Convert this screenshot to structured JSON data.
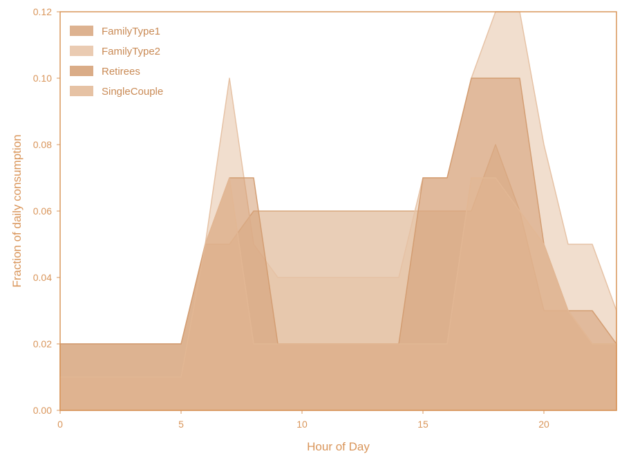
{
  "chart_data": {
    "type": "area",
    "title": "",
    "xlabel": "Hour of Day",
    "ylabel": "Fraction of daily consumption",
    "xlim": [
      0,
      23
    ],
    "ylim": [
      0,
      0.12
    ],
    "x": [
      0,
      1,
      2,
      3,
      4,
      5,
      6,
      7,
      8,
      9,
      10,
      11,
      12,
      13,
      14,
      15,
      16,
      17,
      18,
      19,
      20,
      21,
      22,
      23
    ],
    "xticks": [
      0,
      5,
      10,
      15,
      20
    ],
    "xtick_labels": [
      "0",
      "5",
      "10",
      "15",
      "20"
    ],
    "yticks": [
      0.0,
      0.02,
      0.04,
      0.06,
      0.08,
      0.1,
      0.12
    ],
    "ytick_labels": [
      "0.00",
      "0.02",
      "0.04",
      "0.06",
      "0.08",
      "0.10",
      "0.12"
    ],
    "grid": false,
    "legend_position": "top-left",
    "series": [
      {
        "name": "FamilyType1",
        "color": "#d7a57c",
        "values": [
          0.02,
          0.02,
          0.02,
          0.02,
          0.02,
          0.02,
          0.05,
          0.05,
          0.06,
          0.06,
          0.06,
          0.06,
          0.06,
          0.06,
          0.06,
          0.06,
          0.06,
          0.06,
          0.08,
          0.06,
          0.03,
          0.03,
          0.02,
          0.02
        ]
      },
      {
        "name": "FamilyType2",
        "color": "#e6c2a5",
        "values": [
          0.01,
          0.01,
          0.01,
          0.01,
          0.01,
          0.01,
          0.05,
          0.1,
          0.05,
          0.04,
          0.04,
          0.04,
          0.04,
          0.04,
          0.04,
          0.07,
          0.07,
          0.1,
          0.12,
          0.12,
          0.08,
          0.05,
          0.05,
          0.03
        ]
      },
      {
        "name": "Retirees",
        "color": "#d39d72",
        "values": [
          0.02,
          0.02,
          0.02,
          0.02,
          0.02,
          0.02,
          0.05,
          0.07,
          0.07,
          0.02,
          0.02,
          0.02,
          0.02,
          0.02,
          0.02,
          0.07,
          0.07,
          0.1,
          0.1,
          0.1,
          0.05,
          0.03,
          0.03,
          0.02
        ]
      },
      {
        "name": "SingleCouple",
        "color": "#e2b794",
        "values": [
          0.01,
          0.01,
          0.01,
          0.01,
          0.01,
          0.01,
          0.05,
          0.07,
          0.02,
          0.02,
          0.02,
          0.02,
          0.02,
          0.02,
          0.02,
          0.02,
          0.02,
          0.07,
          0.07,
          0.06,
          0.05,
          0.03,
          0.02,
          0.02
        ]
      }
    ]
  },
  "colors": {
    "axis": "#d9955a",
    "text": "#d9955a"
  }
}
